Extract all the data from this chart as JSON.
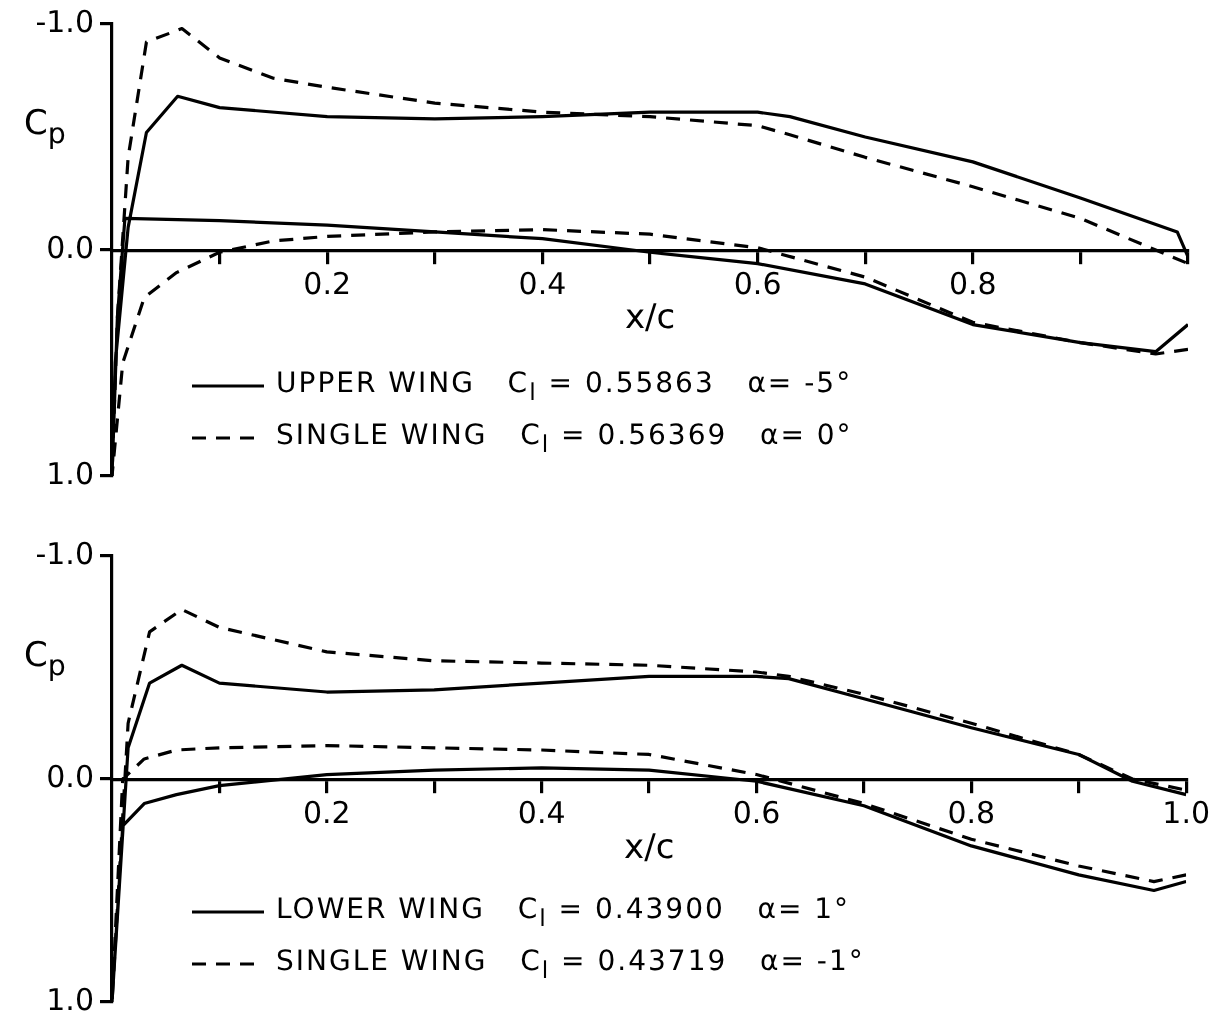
{
  "chart_data": [
    {
      "type": "line",
      "ylabel": "C$_{p}$",
      "xlabel": "x/c",
      "xlim": [
        0,
        1
      ],
      "ylim": [
        1,
        -1
      ],
      "xticks": [
        {
          "value": 0.1,
          "label": null
        },
        {
          "value": 0.2,
          "label": "0.2"
        },
        {
          "value": 0.3,
          "label": null
        },
        {
          "value": 0.4,
          "label": "0.4"
        },
        {
          "value": 0.5,
          "label": null
        },
        {
          "value": 0.6,
          "label": "0.6"
        },
        {
          "value": 0.7,
          "label": null
        },
        {
          "value": 0.8,
          "label": "0.8"
        },
        {
          "value": 0.9,
          "label": null
        },
        {
          "value": 1,
          "label": null
        }
      ],
      "yticks": [
        {
          "value": -1,
          "label": "-1.0"
        },
        {
          "value": 0,
          "label": "0.0"
        },
        {
          "value": 1,
          "label": "1.0"
        }
      ],
      "grid": false,
      "legend": "bottom",
      "marker": "none",
      "series": [
        {
          "name": "UPPER WING   C$_{l}$ = 0.55863   α= -5°",
          "color": "#000000",
          "line_style": "solid",
          "x": [
            1,
            0.97,
            0.9,
            0.8,
            0.7,
            0.6,
            0.5,
            0.4,
            0.3,
            0.2,
            0.1,
            0.012,
            0.005,
            0,
            0.003,
            0.015,
            0.032,
            0.061,
            0.1,
            0.2,
            0.3,
            0.4,
            0.5,
            0.6,
            0.63,
            0.7,
            0.8,
            0.9,
            0.99,
            1
          ],
          "values": [
            0.33,
            0.45,
            0.41,
            0.33,
            0.15,
            0.06,
            0.01,
            -0.05,
            -0.08,
            -0.11,
            -0.13,
            -0.14,
            0.3,
            1,
            0.5,
            -0.1,
            -0.52,
            -0.68,
            -0.63,
            -0.59,
            -0.58,
            -0.59,
            -0.61,
            -0.61,
            -0.59,
            -0.5,
            -0.39,
            -0.23,
            -0.08,
            0.03
          ]
        },
        {
          "name": "SINGLE WING   C$_{l}$ = 0.56369   α= 0°",
          "color": "#000000",
          "line_style": "dashed",
          "x": [
            1,
            0.97,
            0.9,
            0.8,
            0.7,
            0.6,
            0.5,
            0.4,
            0.3,
            0.2,
            0.15,
            0.1,
            0.06,
            0.03,
            0.01,
            0,
            0.005,
            0.015,
            0.032,
            0.065,
            0.1,
            0.15,
            0.2,
            0.3,
            0.4,
            0.5,
            0.6,
            0.63,
            0.7,
            0.8,
            0.9,
            0.97,
            1
          ],
          "values": [
            0.44,
            0.46,
            0.41,
            0.32,
            0.12,
            -0.01,
            -0.07,
            -0.09,
            -0.08,
            -0.06,
            -0.04,
            0.01,
            0.1,
            0.21,
            0.5,
            1,
            0.3,
            -0.41,
            -0.92,
            -0.98,
            -0.85,
            -0.76,
            -0.72,
            -0.65,
            -0.61,
            -0.59,
            -0.55,
            -0.51,
            -0.41,
            -0.28,
            -0.14,
            0,
            0.06
          ]
        }
      ]
    },
    {
      "type": "line",
      "ylabel": "C$_{p}$",
      "xlabel": "x/c",
      "xlim": [
        0,
        1
      ],
      "ylim": [
        1,
        -1
      ],
      "xticks": [
        {
          "value": 0.1,
          "label": null
        },
        {
          "value": 0.2,
          "label": "0.2"
        },
        {
          "value": 0.3,
          "label": null
        },
        {
          "value": 0.4,
          "label": "0.4"
        },
        {
          "value": 0.5,
          "label": null
        },
        {
          "value": 0.6,
          "label": "0.6"
        },
        {
          "value": 0.7,
          "label": null
        },
        {
          "value": 0.8,
          "label": "0.8"
        },
        {
          "value": 0.9,
          "label": null
        },
        {
          "value": 1,
          "label": "1.0"
        }
      ],
      "yticks": [
        {
          "value": -1,
          "label": "-1.0"
        },
        {
          "value": 0,
          "label": "0.0"
        },
        {
          "value": 1,
          "label": "1.0"
        }
      ],
      "grid": false,
      "legend": "bottom",
      "marker": "none",
      "series": [
        {
          "name": "LOWER WING   C$_{l}$ = 0.43900   α= 1°",
          "color": "#000000",
          "line_style": "solid",
          "x": [
            1,
            0.97,
            0.9,
            0.8,
            0.7,
            0.6,
            0.5,
            0.4,
            0.3,
            0.2,
            0.1,
            0.06,
            0.03,
            0.01,
            0,
            0.015,
            0.035,
            0.065,
            0.1,
            0.2,
            0.3,
            0.4,
            0.5,
            0.6,
            0.63,
            0.7,
            0.8,
            0.9,
            0.95,
            1
          ],
          "values": [
            0.46,
            0.5,
            0.43,
            0.3,
            0.12,
            0.01,
            -0.04,
            -0.05,
            -0.04,
            -0.02,
            0.03,
            0.07,
            0.11,
            0.21,
            1,
            -0.14,
            -0.43,
            -0.51,
            -0.43,
            -0.39,
            -0.4,
            -0.43,
            -0.46,
            -0.46,
            -0.45,
            -0.36,
            -0.23,
            -0.11,
            0.01,
            0.07
          ]
        },
        {
          "name": "SINGLE WING   C$_{l}$ = 0.43719   α= -1°",
          "color": "#000000",
          "line_style": "dashed",
          "x": [
            1,
            0.97,
            0.9,
            0.8,
            0.7,
            0.6,
            0.5,
            0.4,
            0.3,
            0.2,
            0.1,
            0.06,
            0.03,
            0.01,
            0,
            0.015,
            0.035,
            0.065,
            0.1,
            0.2,
            0.3,
            0.4,
            0.5,
            0.6,
            0.63,
            0.7,
            0.8,
            0.9,
            0.95,
            1
          ],
          "values": [
            0.43,
            0.46,
            0.39,
            0.27,
            0.11,
            -0.02,
            -0.11,
            -0.13,
            -0.14,
            -0.15,
            -0.14,
            -0.13,
            -0.09,
            0,
            1,
            -0.25,
            -0.66,
            -0.76,
            -0.68,
            -0.57,
            -0.53,
            -0.52,
            -0.51,
            -0.48,
            -0.46,
            -0.38,
            -0.25,
            -0.11,
            0,
            0.05
          ]
        }
      ]
    }
  ]
}
